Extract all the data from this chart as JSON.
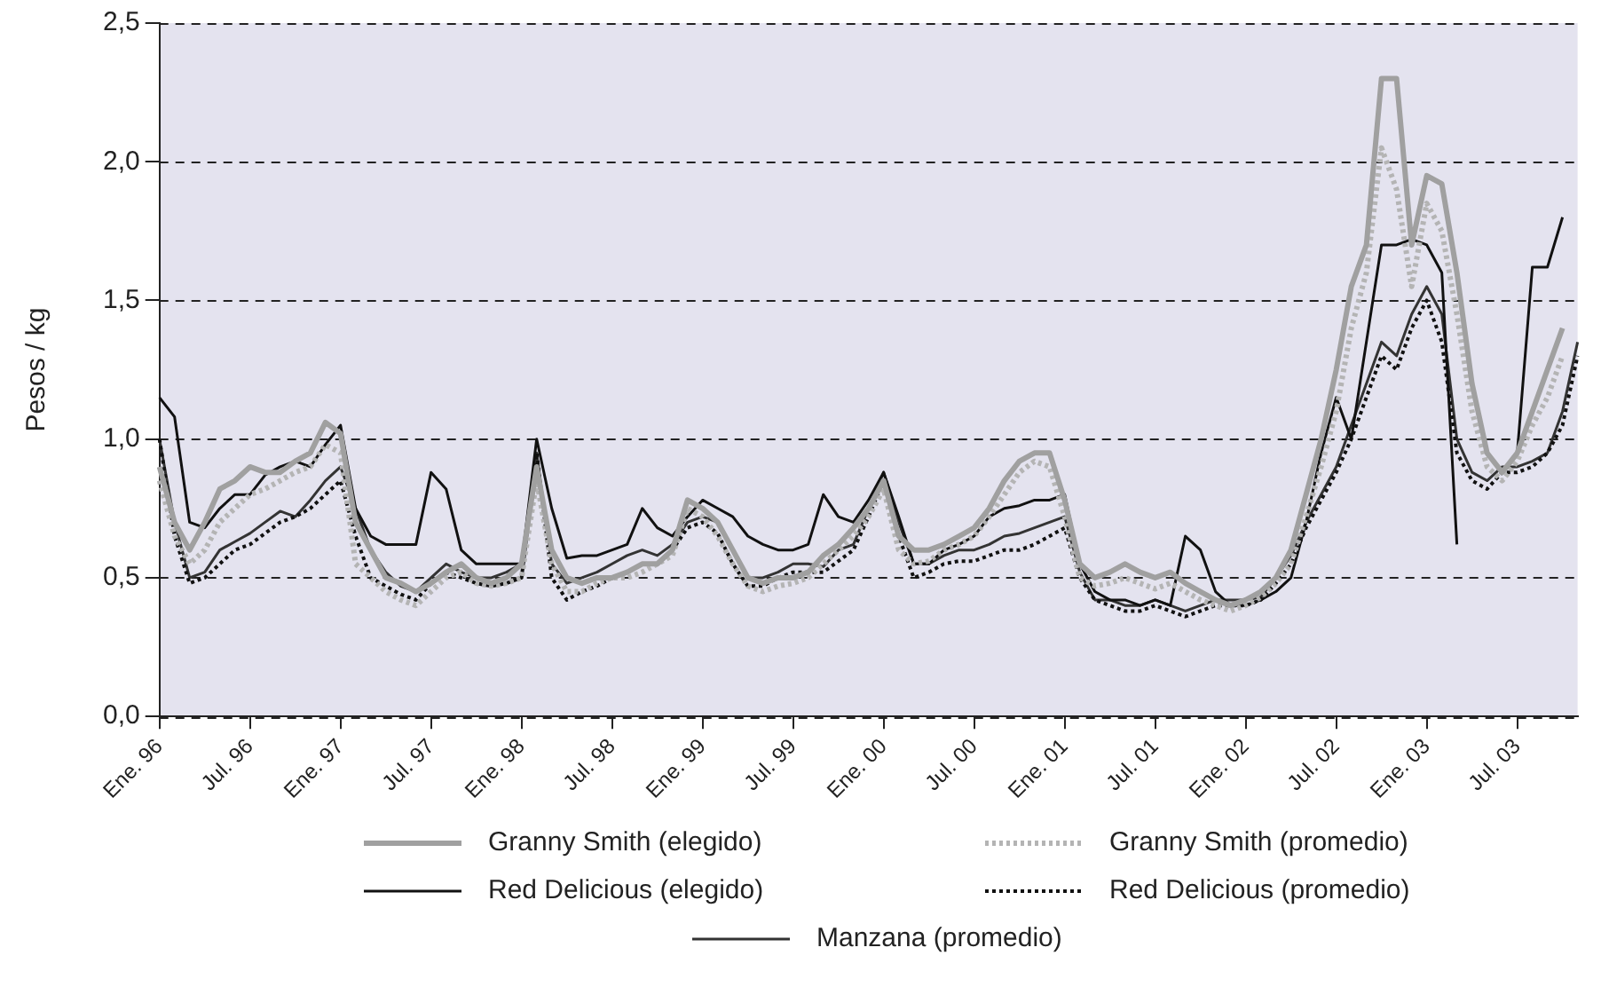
{
  "chart_data": {
    "type": "line",
    "ylabel": "Pesos / kg",
    "categories": [
      "Ene. 96",
      null,
      null,
      null,
      null,
      null,
      "Jul. 96",
      null,
      null,
      null,
      null,
      null,
      "Ene. 97",
      null,
      null,
      null,
      null,
      null,
      "Jul. 97",
      null,
      null,
      null,
      null,
      null,
      "Ene. 98",
      null,
      null,
      null,
      null,
      null,
      "Jul. 98",
      null,
      null,
      null,
      null,
      null,
      "Ene. 99",
      null,
      null,
      null,
      null,
      null,
      "Jul. 99",
      null,
      null,
      null,
      null,
      null,
      "Ene. 00",
      null,
      null,
      null,
      null,
      null,
      "Jul. 00",
      null,
      null,
      null,
      null,
      null,
      "Ene. 01",
      null,
      null,
      null,
      null,
      null,
      "Jul. 01",
      null,
      null,
      null,
      null,
      null,
      "Ene. 02",
      null,
      null,
      null,
      null,
      null,
      "Jul. 02",
      null,
      null,
      null,
      null,
      null,
      "Ene. 03",
      null,
      null,
      null,
      null,
      null,
      "Jul. 03",
      null,
      null,
      null,
      null
    ],
    "series": [
      {
        "name": "Granny Smith (elegido)",
        "color": "#a0a0a0",
        "line_style": "solid",
        "values": [
          0.9,
          0.7,
          0.6,
          0.7,
          0.82,
          0.85,
          0.9,
          0.88,
          0.88,
          0.92,
          0.95,
          1.06,
          1.02,
          0.7,
          0.6,
          0.5,
          0.48,
          0.45,
          0.48,
          0.52,
          0.55,
          0.5,
          0.48,
          0.5,
          0.55,
          0.9,
          0.6,
          0.5,
          0.48,
          0.5,
          0.5,
          0.52,
          0.55,
          0.55,
          0.6,
          0.78,
          0.75,
          0.7,
          0.6,
          0.5,
          0.48,
          0.5,
          0.5,
          0.52,
          0.58,
          0.62,
          0.68,
          0.75,
          0.85,
          0.65,
          0.6,
          0.6,
          0.62,
          0.65,
          0.68,
          0.75,
          0.85,
          0.92,
          0.95,
          0.95,
          0.78,
          0.55,
          0.5,
          0.52,
          0.55,
          0.52,
          0.5,
          0.52,
          0.48,
          0.45,
          0.42,
          0.4,
          0.42,
          0.45,
          0.5,
          0.6,
          0.8,
          1.0,
          1.25,
          1.55,
          1.7,
          2.3,
          2.3,
          1.7,
          1.95,
          1.92,
          1.6,
          1.2,
          0.95,
          0.88,
          0.95,
          1.1,
          1.25,
          1.4,
          null
        ]
      },
      {
        "name": "Granny Smith (promedio)",
        "color": "#b4b4b4",
        "line_style": "dotted",
        "values": [
          0.85,
          0.65,
          0.55,
          0.6,
          0.7,
          0.75,
          0.8,
          0.82,
          0.85,
          0.88,
          0.9,
          0.98,
          0.95,
          0.55,
          0.5,
          0.45,
          0.42,
          0.4,
          0.45,
          0.5,
          0.52,
          0.48,
          0.47,
          0.48,
          0.5,
          0.85,
          0.55,
          0.45,
          0.45,
          0.48,
          0.5,
          0.5,
          0.52,
          0.55,
          0.58,
          0.75,
          0.72,
          0.65,
          0.55,
          0.47,
          0.45,
          0.47,
          0.48,
          0.5,
          0.55,
          0.6,
          0.65,
          0.72,
          0.82,
          0.6,
          0.55,
          0.56,
          0.6,
          0.62,
          0.65,
          0.72,
          0.8,
          0.88,
          0.92,
          0.9,
          0.72,
          0.5,
          0.47,
          0.48,
          0.5,
          0.48,
          0.46,
          0.48,
          0.45,
          0.42,
          0.4,
          0.38,
          0.4,
          0.43,
          0.48,
          0.55,
          0.72,
          0.9,
          1.1,
          1.4,
          1.6,
          2.05,
          1.9,
          1.55,
          1.85,
          1.75,
          1.45,
          1.1,
          0.9,
          0.85,
          0.92,
          1.05,
          1.15,
          1.3,
          null
        ]
      },
      {
        "name": "Red Delicious (elegido)",
        "color": "#111111",
        "line_style": "solid",
        "values": [
          1.15,
          1.08,
          0.7,
          0.68,
          0.75,
          0.8,
          0.8,
          0.87,
          0.9,
          0.92,
          0.9,
          0.98,
          1.05,
          0.75,
          0.65,
          0.62,
          0.62,
          0.62,
          0.88,
          0.82,
          0.6,
          0.55,
          0.55,
          0.55,
          0.55,
          1.0,
          0.75,
          0.57,
          0.58,
          0.58,
          0.6,
          0.62,
          0.75,
          0.68,
          0.65,
          0.72,
          0.78,
          0.75,
          0.72,
          0.65,
          0.62,
          0.6,
          0.6,
          0.62,
          0.8,
          0.72,
          0.7,
          0.78,
          0.88,
          0.72,
          0.55,
          0.55,
          0.6,
          0.62,
          0.65,
          0.72,
          0.75,
          0.76,
          0.78,
          0.78,
          0.8,
          0.55,
          0.45,
          0.42,
          0.42,
          0.4,
          0.42,
          0.4,
          0.65,
          0.6,
          0.45,
          0.4,
          0.4,
          0.42,
          0.45,
          0.5,
          0.7,
          0.95,
          1.15,
          1.0,
          1.35,
          1.7,
          1.7,
          1.72,
          1.7,
          1.6,
          0.62,
          null,
          null,
          null,
          0.95,
          1.62,
          1.62,
          1.8,
          null
        ]
      },
      {
        "name": "Red Delicious (promedio)",
        "color": "#111111",
        "line_style": "dotted",
        "values": [
          1.0,
          0.65,
          0.48,
          0.5,
          0.55,
          0.6,
          0.62,
          0.66,
          0.7,
          0.72,
          0.75,
          0.8,
          0.85,
          0.65,
          0.5,
          0.47,
          0.44,
          0.42,
          0.48,
          0.52,
          0.5,
          0.48,
          0.47,
          0.48,
          0.5,
          0.95,
          0.5,
          0.42,
          0.45,
          0.47,
          0.5,
          0.52,
          0.55,
          0.55,
          0.6,
          0.68,
          0.7,
          0.66,
          0.55,
          0.47,
          0.47,
          0.5,
          0.52,
          0.52,
          0.52,
          0.56,
          0.6,
          0.72,
          0.85,
          0.65,
          0.5,
          0.52,
          0.55,
          0.56,
          0.56,
          0.58,
          0.6,
          0.6,
          0.62,
          0.65,
          0.68,
          0.5,
          0.42,
          0.4,
          0.38,
          0.38,
          0.4,
          0.38,
          0.36,
          0.38,
          0.4,
          0.4,
          0.4,
          0.42,
          0.48,
          0.55,
          0.68,
          0.78,
          0.88,
          1.0,
          1.15,
          1.3,
          1.25,
          1.4,
          1.5,
          1.35,
          0.95,
          0.85,
          0.82,
          0.88,
          0.88,
          0.9,
          0.95,
          1.05,
          1.3
        ]
      },
      {
        "name": "Manzana (promedio)",
        "color": "#333333",
        "line_style": "solid",
        "values": [
          1.0,
          0.7,
          0.5,
          0.52,
          0.6,
          0.63,
          0.66,
          0.7,
          0.74,
          0.72,
          0.78,
          0.85,
          0.9,
          0.75,
          0.6,
          0.52,
          0.47,
          0.45,
          0.5,
          0.55,
          0.52,
          0.5,
          0.5,
          0.52,
          0.55,
          0.95,
          0.55,
          0.48,
          0.5,
          0.52,
          0.55,
          0.58,
          0.6,
          0.58,
          0.62,
          0.7,
          0.72,
          0.7,
          0.6,
          0.5,
          0.5,
          0.52,
          0.55,
          0.55,
          0.54,
          0.6,
          0.62,
          0.75,
          0.88,
          0.7,
          0.55,
          0.55,
          0.58,
          0.6,
          0.6,
          0.62,
          0.65,
          0.66,
          0.68,
          0.7,
          0.72,
          0.52,
          0.42,
          0.42,
          0.4,
          0.4,
          0.42,
          0.4,
          0.38,
          0.4,
          0.42,
          0.42,
          0.42,
          0.43,
          0.5,
          0.58,
          0.7,
          0.8,
          0.9,
          1.05,
          1.2,
          1.35,
          1.3,
          1.45,
          1.55,
          1.45,
          1.0,
          0.88,
          0.85,
          0.9,
          0.9,
          0.92,
          0.95,
          1.1,
          1.35
        ]
      }
    ],
    "ylim": [
      0,
      2.5
    ],
    "yticks": [
      {
        "value": 0,
        "label": "0,0"
      },
      {
        "value": 0.5,
        "label": "0,5"
      },
      {
        "value": 1,
        "label": "1,0"
      },
      {
        "value": 1.5,
        "label": "1,5"
      },
      {
        "value": 2,
        "label": "2,0"
      },
      {
        "value": 2.5,
        "label": "2,5"
      }
    ],
    "grid": "y",
    "legend": "bottom",
    "marker": "none"
  }
}
